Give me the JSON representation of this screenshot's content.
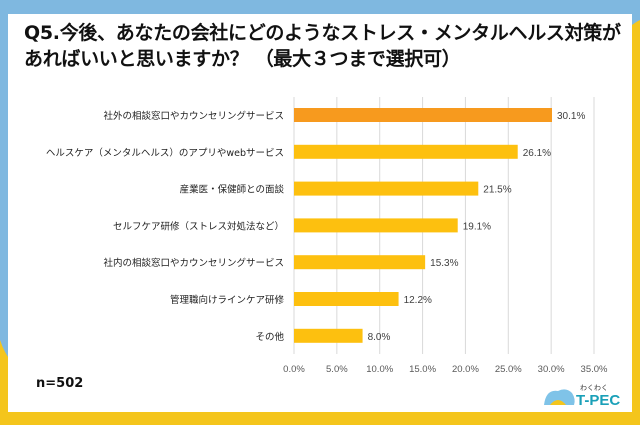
{
  "title": "Q5.今後、あなたの会社にどのようなストレス・メンタルヘルス対策があればいいと思いますか？ （最大３つまで選択可）",
  "sample": "n=502",
  "logo": {
    "top": "わくわく",
    "main": "T-PEC"
  },
  "colors": {
    "highlight": "#f79a1e",
    "bar": "#fdc00f",
    "grid": "#d9d9d9",
    "bg_blue": "#7fb8e0",
    "bg_yellow": "#f4c51c"
  },
  "chart_data": {
    "type": "bar",
    "orientation": "horizontal",
    "categories": [
      "社外の相談窓口やカウンセリングサービス",
      "ヘルスケア（メンタルヘルス）のアプリやwebサービス",
      "産業医・保健師との面談",
      "セルフケア研修（ストレス対処法など）",
      "社内の相談窓口やカウンセリングサービス",
      "管理職向けラインケア研修",
      "その他"
    ],
    "values": [
      30.1,
      26.1,
      21.5,
      19.1,
      15.3,
      12.2,
      8.0
    ],
    "value_labels": [
      "30.1%",
      "26.1%",
      "21.5%",
      "19.1%",
      "15.3%",
      "12.2%",
      "8.0%"
    ],
    "xlim": [
      0,
      35
    ],
    "xticks": [
      "0.0%",
      "5.0%",
      "10.0%",
      "15.0%",
      "20.0%",
      "25.0%",
      "30.0%",
      "35.0%"
    ],
    "grid": true
  }
}
